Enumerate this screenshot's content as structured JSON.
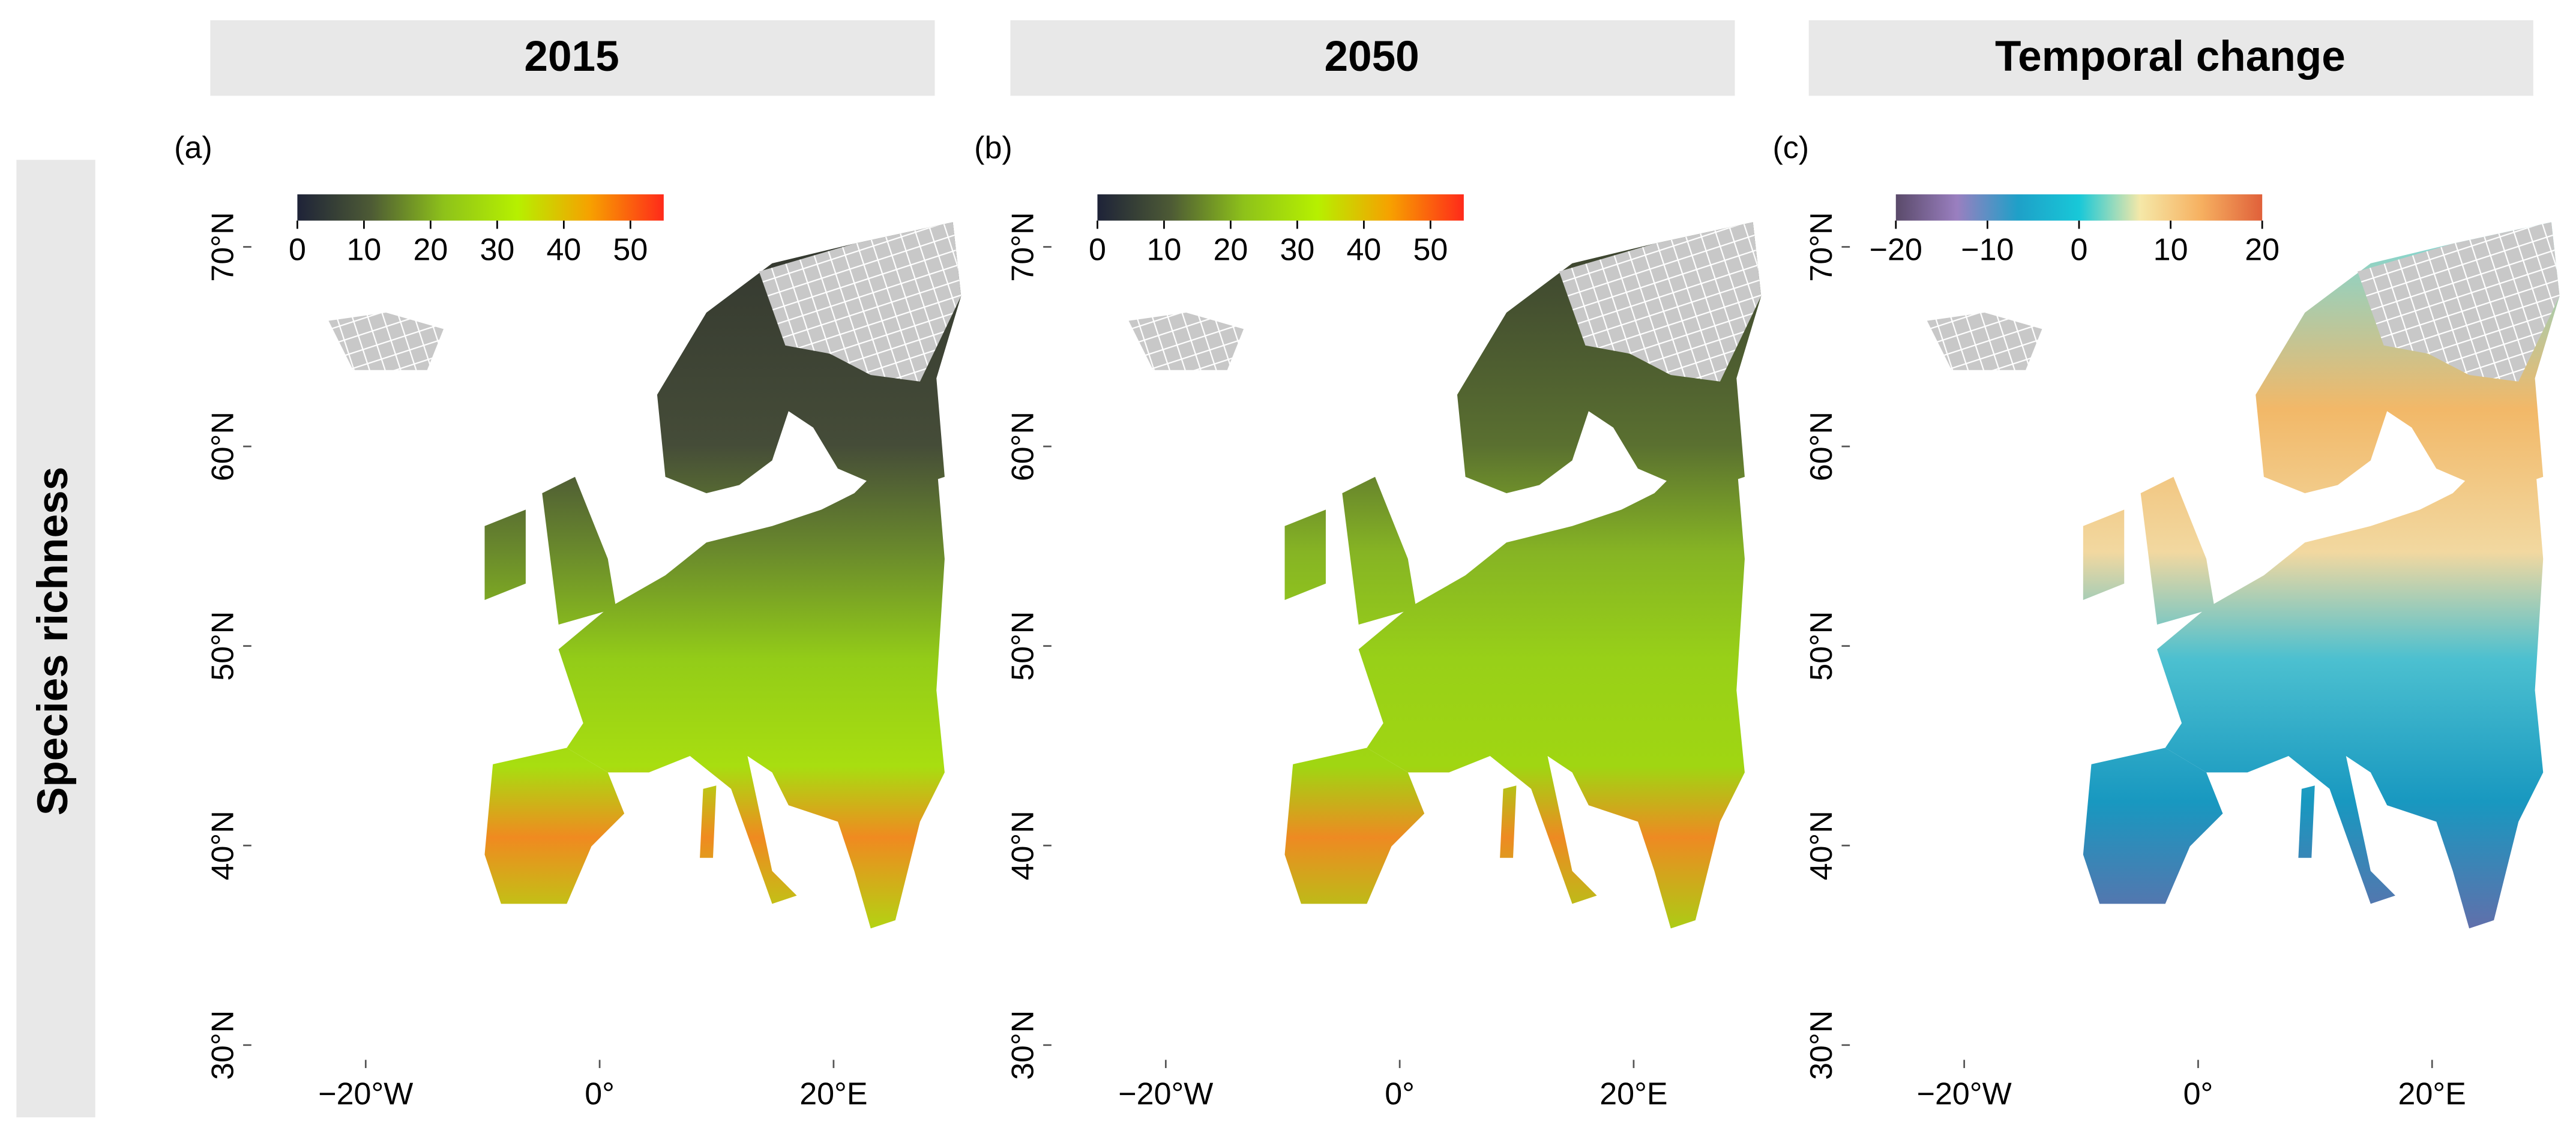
{
  "row_label": "Species richness",
  "panels": [
    {
      "header": "2015",
      "label": "(a)",
      "colorbar": {
        "colors": [
          "#1e2338",
          "#4d5a35",
          "#8ec21a",
          "#b6f000",
          "#f7a000",
          "#ff2a1a"
        ],
        "lim": [
          0,
          55
        ],
        "ticks": [
          0,
          10,
          20,
          30,
          40,
          50
        ]
      }
    },
    {
      "header": "2050",
      "label": "(b)",
      "colorbar": {
        "colors": [
          "#1e2338",
          "#4d5a35",
          "#8ec21a",
          "#b6f000",
          "#f7a000",
          "#ff2a1a"
        ],
        "lim": [
          0,
          55
        ],
        "ticks": [
          0,
          10,
          20,
          30,
          40,
          50
        ]
      }
    },
    {
      "header": "Temporal change",
      "label": "(c)",
      "colorbar": {
        "colors": [
          "#5a4a6a",
          "#9a7fc0",
          "#1ea0c8",
          "#18c8d8",
          "#f5e8a8",
          "#f6b060",
          "#e0603a"
        ],
        "lim": [
          -20,
          20
        ],
        "ticks": [
          {
            "value": -20,
            "label": "−20"
          },
          {
            "value": -10,
            "label": "−10"
          },
          0,
          10,
          20
        ]
      }
    }
  ],
  "lat_ticks": [
    {
      "value": 70,
      "label": "70°N"
    },
    {
      "value": 60,
      "label": "60°N"
    },
    {
      "value": 50,
      "label": "50°N"
    },
    {
      "value": 40,
      "label": "40°N"
    },
    {
      "value": 30,
      "label": "30°N"
    }
  ],
  "lon_ticks": [
    {
      "value": -20,
      "label": "−20°W"
    },
    {
      "value": 0,
      "label": "0°"
    },
    {
      "value": 20,
      "label": "20°E"
    }
  ]
}
